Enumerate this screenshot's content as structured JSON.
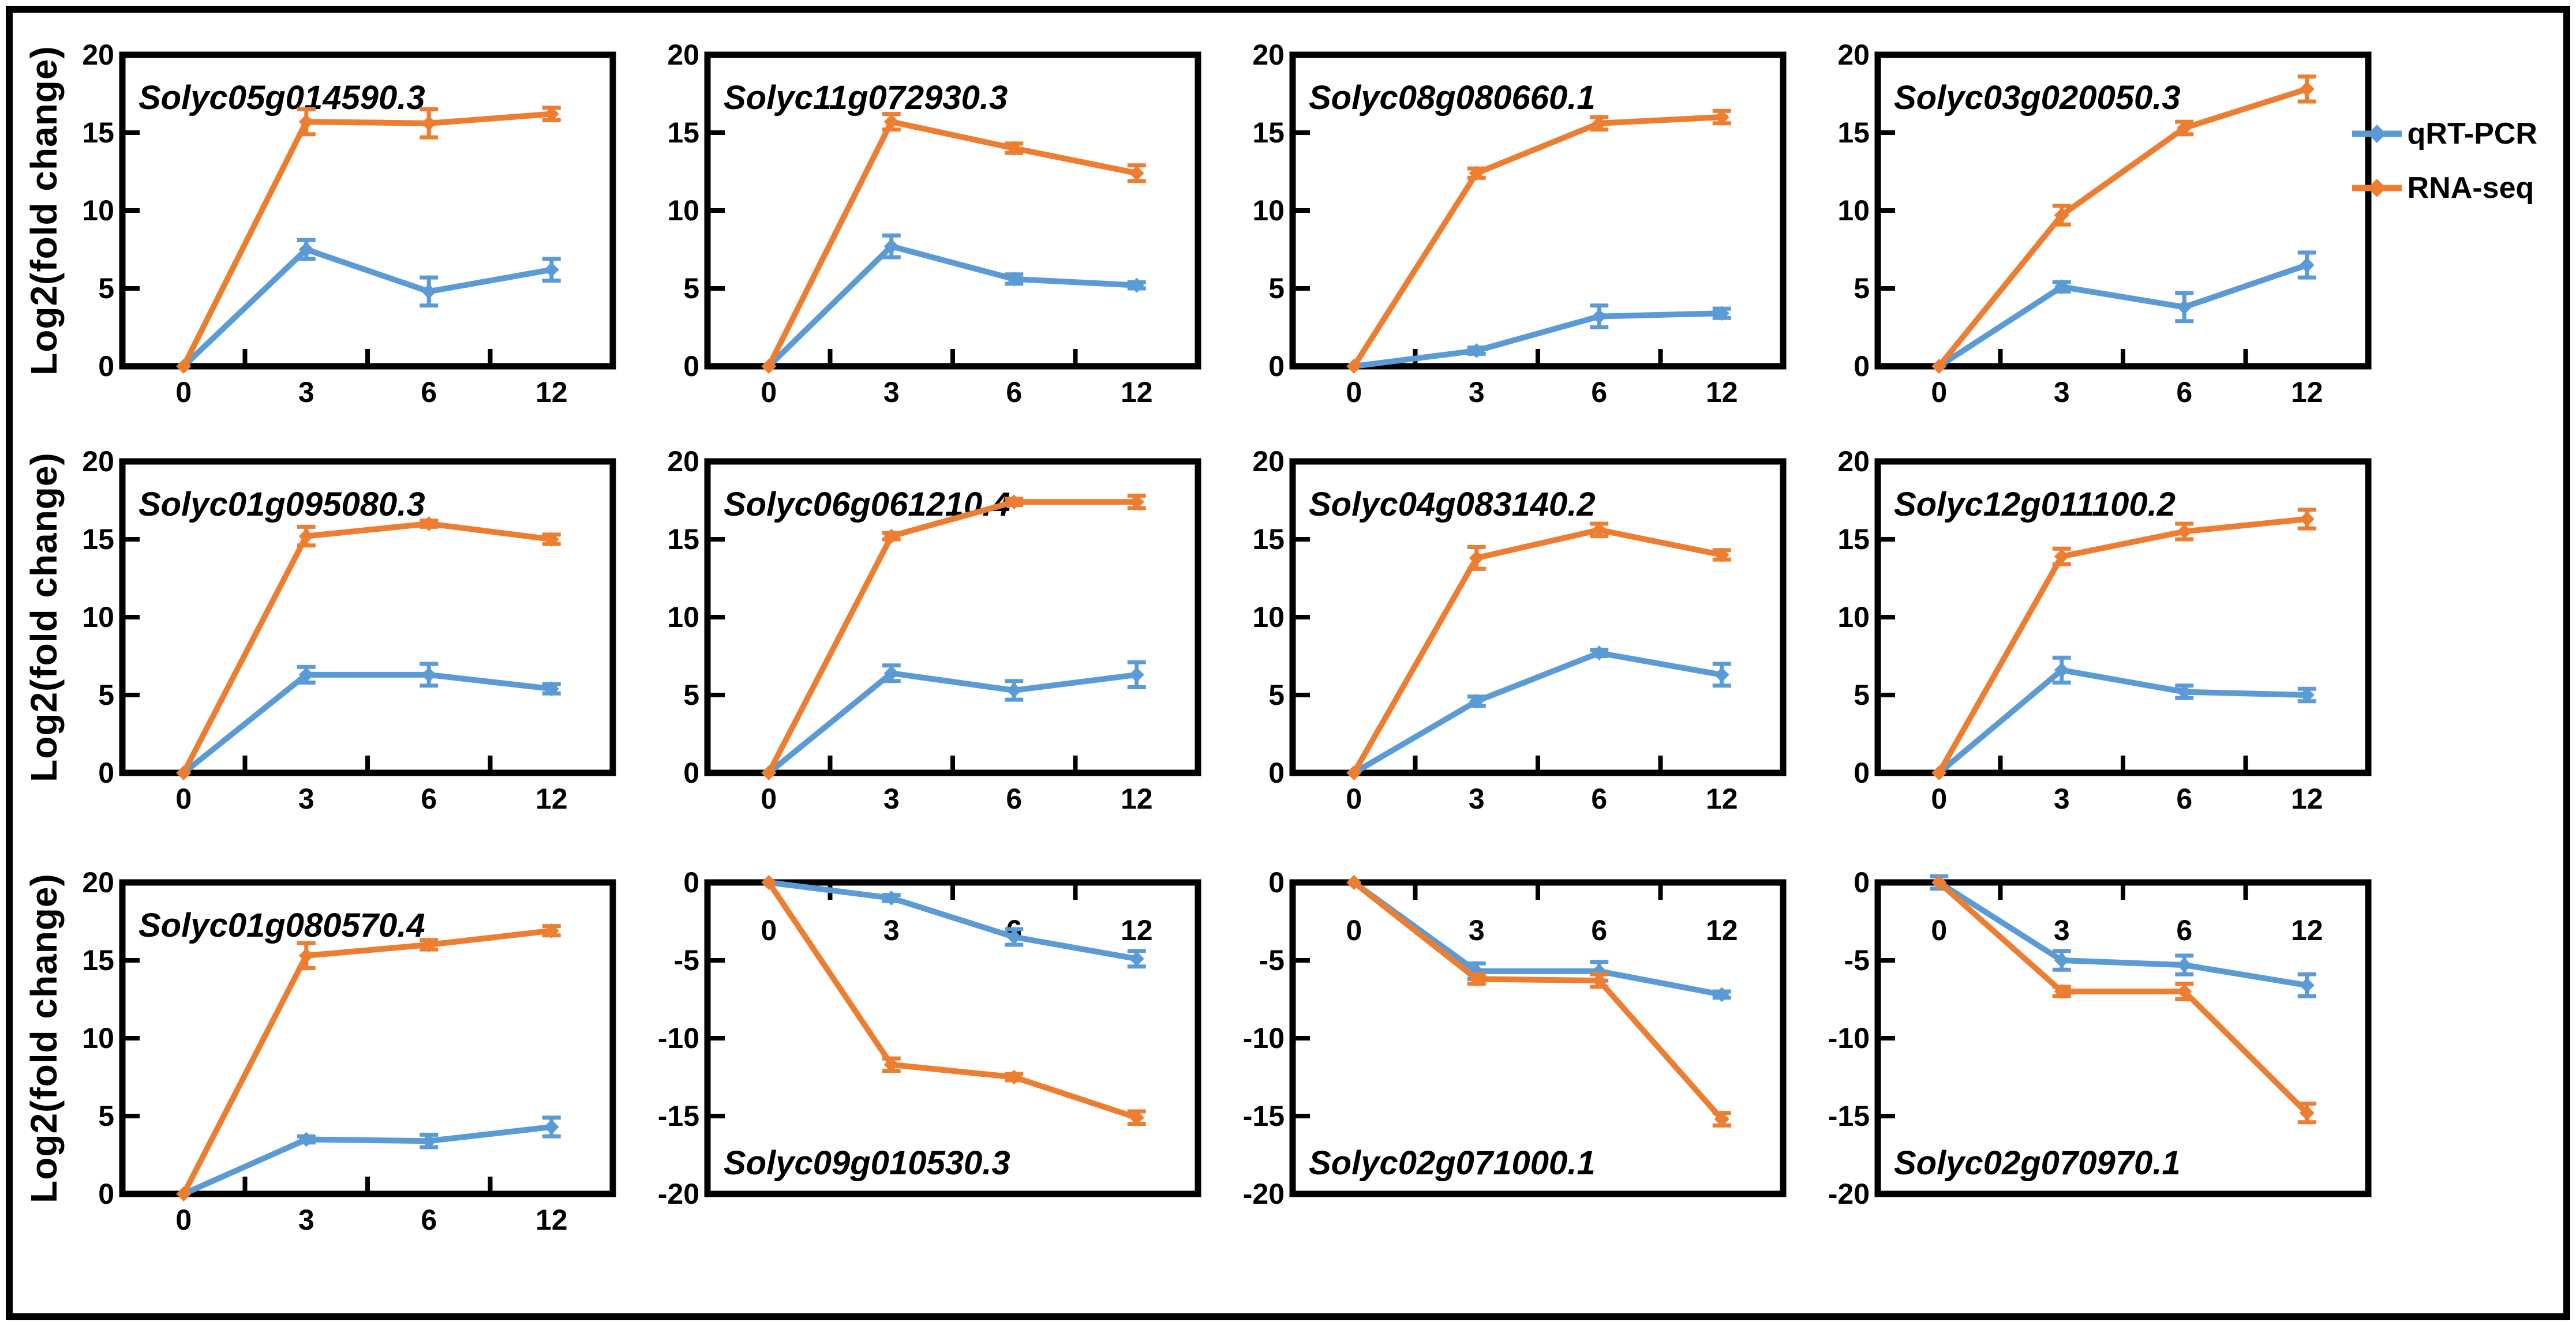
{
  "figure": {
    "background": "#ffffff",
    "frame_color": "#000000"
  },
  "y_axis_label": "Log2(fold change)",
  "x_tick_labels": [
    "0",
    "3",
    "6",
    "12"
  ],
  "legend": {
    "position": "top-right",
    "items": [
      {
        "label": "qRT-PCR",
        "color": "#5B9BD5"
      },
      {
        "label": "RNA-seq",
        "color": "#ED7D31"
      }
    ]
  },
  "chart_data": {
    "type": "line",
    "x": [
      0,
      3,
      6,
      12
    ],
    "xlabel": "",
    "ylabel": "Log2(fold change)",
    "grid": false,
    "marker": "diamond",
    "error_bars": true,
    "panels": [
      {
        "title": "Solyc05g014590.3",
        "ylim": [
          0,
          20
        ],
        "yticks": [
          0,
          5,
          10,
          15,
          20
        ],
        "title_position": "top-left",
        "x_labels_position": "below",
        "series": [
          {
            "name": "qRT-PCR",
            "values": [
              0,
              7.5,
              4.8,
              6.2
            ],
            "errors": [
              0,
              0.6,
              0.9,
              0.7
            ]
          },
          {
            "name": "RNA-seq",
            "values": [
              0,
              15.7,
              15.6,
              16.2
            ],
            "errors": [
              0,
              0.8,
              0.9,
              0.4
            ]
          }
        ]
      },
      {
        "title": "Solyc11g072930.3",
        "ylim": [
          0,
          20
        ],
        "yticks": [
          0,
          5,
          10,
          15,
          20
        ],
        "title_position": "top-left",
        "x_labels_position": "below",
        "series": [
          {
            "name": "qRT-PCR",
            "values": [
              0,
              7.7,
              5.6,
              5.2
            ],
            "errors": [
              0,
              0.7,
              0.3,
              0.2
            ]
          },
          {
            "name": "RNA-seq",
            "values": [
              0,
              15.7,
              14.0,
              12.4
            ],
            "errors": [
              0,
              0.5,
              0.3,
              0.5
            ]
          }
        ]
      },
      {
        "title": "Solyc08g080660.1",
        "ylim": [
          0,
          20
        ],
        "yticks": [
          0,
          5,
          10,
          15,
          20
        ],
        "title_position": "top-left",
        "x_labels_position": "below",
        "series": [
          {
            "name": "qRT-PCR",
            "values": [
              0,
              1.0,
              3.2,
              3.4
            ],
            "errors": [
              0,
              0.2,
              0.7,
              0.3
            ]
          },
          {
            "name": "RNA-seq",
            "values": [
              0,
              12.4,
              15.6,
              16.0
            ],
            "errors": [
              0,
              0.3,
              0.4,
              0.4
            ]
          }
        ]
      },
      {
        "title": "Solyc03g020050.3",
        "ylim": [
          0,
          20
        ],
        "yticks": [
          0,
          5,
          10,
          15,
          20
        ],
        "title_position": "top-left",
        "x_labels_position": "below",
        "series": [
          {
            "name": "qRT-PCR",
            "values": [
              0,
              5.1,
              3.8,
              6.5
            ],
            "errors": [
              0,
              0.3,
              0.9,
              0.8
            ]
          },
          {
            "name": "RNA-seq",
            "values": [
              0,
              9.7,
              15.3,
              17.8
            ],
            "errors": [
              0,
              0.6,
              0.4,
              0.8
            ]
          }
        ]
      },
      {
        "title": "Solyc01g095080.3",
        "ylim": [
          0,
          20
        ],
        "yticks": [
          0,
          5,
          10,
          15,
          20
        ],
        "title_position": "top-left",
        "x_labels_position": "below",
        "series": [
          {
            "name": "qRT-PCR",
            "values": [
              0,
              6.3,
              6.3,
              5.4
            ],
            "errors": [
              0,
              0.5,
              0.7,
              0.3
            ]
          },
          {
            "name": "RNA-seq",
            "values": [
              0,
              15.2,
              16.0,
              15.0
            ],
            "errors": [
              0,
              0.6,
              0.2,
              0.3
            ]
          }
        ]
      },
      {
        "title": "Solyc06g061210.4",
        "ylim": [
          0,
          20
        ],
        "yticks": [
          0,
          5,
          10,
          15,
          20
        ],
        "title_position": "top-left",
        "x_labels_position": "below",
        "series": [
          {
            "name": "qRT-PCR",
            "values": [
              0,
              6.4,
              5.3,
              6.3
            ],
            "errors": [
              0,
              0.5,
              0.6,
              0.8
            ]
          },
          {
            "name": "RNA-seq",
            "values": [
              0,
              15.2,
              17.4,
              17.4
            ],
            "errors": [
              0,
              0.2,
              0.2,
              0.4
            ]
          }
        ]
      },
      {
        "title": "Solyc04g083140.2",
        "ylim": [
          0,
          20
        ],
        "yticks": [
          0,
          5,
          10,
          15,
          20
        ],
        "title_position": "top-left",
        "x_labels_position": "below",
        "series": [
          {
            "name": "qRT-PCR",
            "values": [
              0,
              4.6,
              7.7,
              6.3
            ],
            "errors": [
              0,
              0.3,
              0.2,
              0.7
            ]
          },
          {
            "name": "RNA-seq",
            "values": [
              0,
              13.8,
              15.6,
              14.0
            ],
            "errors": [
              0,
              0.7,
              0.4,
              0.3
            ]
          }
        ]
      },
      {
        "title": "Solyc12g011100.2",
        "ylim": [
          0,
          20
        ],
        "yticks": [
          0,
          5,
          10,
          15,
          20
        ],
        "title_position": "top-left",
        "x_labels_position": "below",
        "series": [
          {
            "name": "qRT-PCR",
            "values": [
              0,
              6.6,
              5.2,
              5.0
            ],
            "errors": [
              0,
              0.8,
              0.4,
              0.4
            ]
          },
          {
            "name": "RNA-seq",
            "values": [
              0,
              13.9,
              15.5,
              16.3
            ],
            "errors": [
              0,
              0.5,
              0.5,
              0.6
            ]
          }
        ]
      },
      {
        "title": "Solyc01g080570.4",
        "ylim": [
          0,
          20
        ],
        "yticks": [
          0,
          5,
          10,
          15,
          20
        ],
        "title_position": "top-left",
        "x_labels_position": "below",
        "series": [
          {
            "name": "qRT-PCR",
            "values": [
              0,
              3.5,
              3.4,
              4.3
            ],
            "errors": [
              0,
              0.2,
              0.4,
              0.6
            ]
          },
          {
            "name": "RNA-seq",
            "values": [
              0,
              15.3,
              16.0,
              16.9
            ],
            "errors": [
              0,
              0.8,
              0.3,
              0.3
            ]
          }
        ]
      },
      {
        "title": "Solyc09g010530.3",
        "ylim": [
          -20,
          0
        ],
        "yticks": [
          0,
          -5,
          -10,
          -15,
          -20
        ],
        "title_position": "bottom-left",
        "x_labels_position": "inside-top",
        "series": [
          {
            "name": "qRT-PCR",
            "values": [
              0,
              -1.0,
              -3.5,
              -4.9
            ],
            "errors": [
              0,
              0.2,
              0.5,
              0.5
            ]
          },
          {
            "name": "RNA-seq",
            "values": [
              0,
              -11.7,
              -12.5,
              -15.1
            ],
            "errors": [
              0,
              0.4,
              0.2,
              0.4
            ]
          }
        ]
      },
      {
        "title": "Solyc02g071000.1",
        "ylim": [
          -20,
          0
        ],
        "yticks": [
          0,
          -5,
          -10,
          -15,
          -20
        ],
        "title_position": "bottom-left",
        "x_labels_position": "inside-top",
        "series": [
          {
            "name": "qRT-PCR",
            "values": [
              0,
              -5.7,
              -5.7,
              -7.2
            ],
            "errors": [
              0,
              0.5,
              0.6,
              0.2
            ]
          },
          {
            "name": "RNA-seq",
            "values": [
              0,
              -6.2,
              -6.3,
              -15.2
            ],
            "errors": [
              0,
              0.3,
              0.4,
              0.4
            ]
          }
        ]
      },
      {
        "title": "Solyc02g070970.1",
        "ylim": [
          -20,
          0
        ],
        "yticks": [
          0,
          -5,
          -10,
          -15,
          -20
        ],
        "title_position": "bottom-left",
        "x_labels_position": "inside-top",
        "series": [
          {
            "name": "qRT-PCR",
            "values": [
              0,
              -5.0,
              -5.3,
              -6.6
            ],
            "errors": [
              0.4,
              0.6,
              0.6,
              0.7
            ]
          },
          {
            "name": "RNA-seq",
            "values": [
              0,
              -7.0,
              -7.0,
              -14.8
            ],
            "errors": [
              0,
              0.3,
              0.5,
              0.6
            ]
          }
        ]
      }
    ]
  }
}
